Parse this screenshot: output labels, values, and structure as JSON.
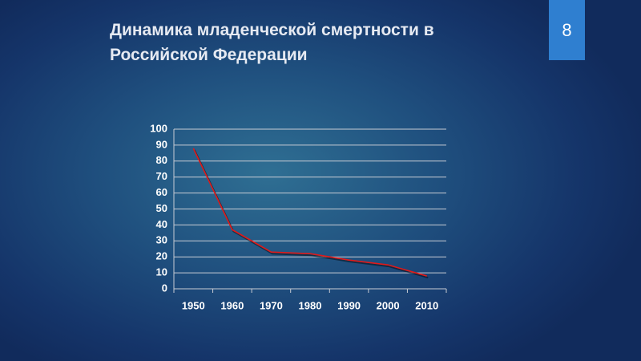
{
  "slide": {
    "number": "8"
  },
  "chart_data": {
    "type": "line",
    "title": "Динамика младенческой смертности в Российской Федерации",
    "categories": [
      "1950",
      "1960",
      "1970",
      "1980",
      "1990",
      "2000",
      "2010"
    ],
    "values": [
      88,
      37,
      23,
      22,
      18,
      15,
      8
    ],
    "color": "#e01a1a",
    "ylim": [
      0,
      100
    ],
    "yticks": [
      0,
      10,
      20,
      30,
      40,
      50,
      60,
      70,
      80,
      90,
      100
    ],
    "grid": true
  }
}
